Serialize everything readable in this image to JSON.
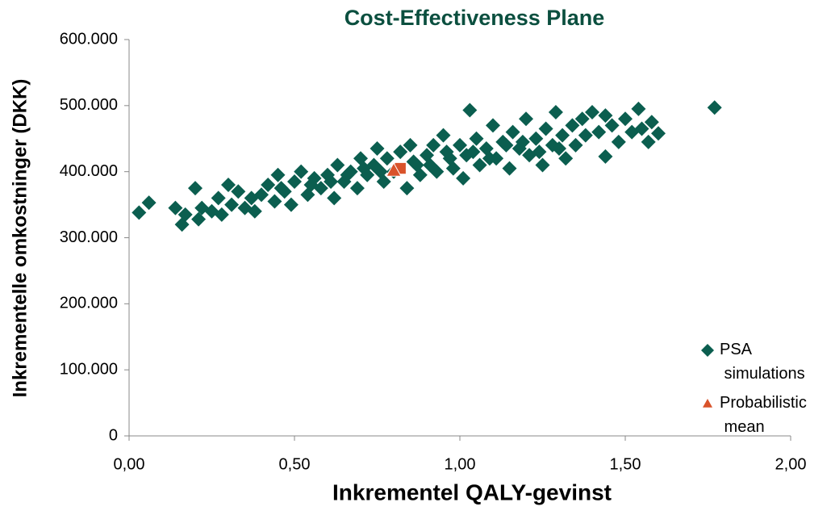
{
  "chart_data": {
    "type": "scatter",
    "title": "Cost-Effectiveness Plane",
    "x_label": "Inkrementel QALY-gevinst",
    "y_label": "Inkrementelle omkostninger (DKK)",
    "xlim": [
      0,
      2
    ],
    "ylim": [
      0,
      600000
    ],
    "xticks": [
      {
        "value": 0,
        "label": "0,00"
      },
      {
        "value": 0.5,
        "label": "0,50"
      },
      {
        "value": 1,
        "label": "1,00"
      },
      {
        "value": 1.5,
        "label": "1,50"
      },
      {
        "value": 2,
        "label": "2,00"
      }
    ],
    "yticks": [
      0,
      {
        "value": 100000,
        "label": "100.000"
      },
      {
        "value": 200000,
        "label": "200.000"
      },
      {
        "value": 300000,
        "label": "300.000"
      },
      {
        "value": 400000,
        "label": "400.000"
      },
      {
        "value": 500000,
        "label": "500.000"
      },
      {
        "value": 600000,
        "label": "600.000"
      }
    ],
    "series": [
      {
        "name": "PSA simulations",
        "color": "#0b5e4f",
        "marker": "diamond",
        "x": [
          0.03,
          0.06,
          0.14,
          0.16,
          0.17,
          0.2,
          0.21,
          0.22,
          0.25,
          0.27,
          0.28,
          0.3,
          0.31,
          0.33,
          0.35,
          0.37,
          0.38,
          0.4,
          0.42,
          0.44,
          0.45,
          0.47,
          0.49,
          0.5,
          0.52,
          0.54,
          0.56,
          0.58,
          0.6,
          0.62,
          0.63,
          0.65,
          0.67,
          0.69,
          0.7,
          0.72,
          0.74,
          0.75,
          0.77,
          0.78,
          0.8,
          0.82,
          0.84,
          0.85,
          0.87,
          0.88,
          0.9,
          0.92,
          0.93,
          0.95,
          0.97,
          0.98,
          1.0,
          1.01,
          1.02,
          1.03,
          1.05,
          1.06,
          1.08,
          1.1,
          1.11,
          1.13,
          1.15,
          1.16,
          1.18,
          1.2,
          1.21,
          1.23,
          1.25,
          1.26,
          1.28,
          1.29,
          1.31,
          1.32,
          1.34,
          1.35,
          1.37,
          1.38,
          1.4,
          1.42,
          1.44,
          1.44,
          1.46,
          1.48,
          1.5,
          1.52,
          1.54,
          1.55,
          1.57,
          1.58,
          1.6,
          1.77,
          0.55,
          0.66,
          0.71,
          0.76,
          0.86,
          0.91,
          0.96,
          1.04,
          1.09,
          1.14,
          1.19,
          1.24,
          1.3,
          0.61,
          0.46
        ],
        "values": [
          338000,
          353000,
          345000,
          320000,
          335000,
          375000,
          328000,
          345000,
          340000,
          360000,
          335000,
          380000,
          350000,
          370000,
          345000,
          360000,
          340000,
          365000,
          380000,
          355000,
          395000,
          370000,
          350000,
          385000,
          400000,
          365000,
          390000,
          375000,
          395000,
          360000,
          410000,
          385000,
          400000,
          375000,
          420000,
          395000,
          410000,
          435000,
          385000,
          420000,
          400000,
          430000,
          375000,
          440000,
          410000,
          395000,
          425000,
          440000,
          400000,
          455000,
          420000,
          405000,
          440000,
          390000,
          425000,
          493000,
          450000,
          410000,
          435000,
          470000,
          420000,
          445000,
          405000,
          460000,
          435000,
          480000,
          425000,
          450000,
          410000,
          465000,
          440000,
          490000,
          455000,
          420000,
          470000,
          440000,
          480000,
          455000,
          490000,
          460000,
          423000,
          485000,
          470000,
          445000,
          480000,
          460000,
          495000,
          465000,
          445000,
          475000,
          458000,
          497000,
          380000,
          395000,
          405000,
          400000,
          415000,
          410000,
          430000,
          430000,
          420000,
          440000,
          445000,
          430000,
          435000,
          385000,
          375000
        ]
      },
      {
        "color": "#d9532b",
        "marker": "square",
        "x": [
          0.82
        ],
        "values": [
          405000
        ]
      },
      {
        "name": "Probabilistic mean",
        "color": "#d9532b",
        "marker": "triangle",
        "x": [
          0.8
        ],
        "values": [
          402000
        ]
      }
    ]
  }
}
